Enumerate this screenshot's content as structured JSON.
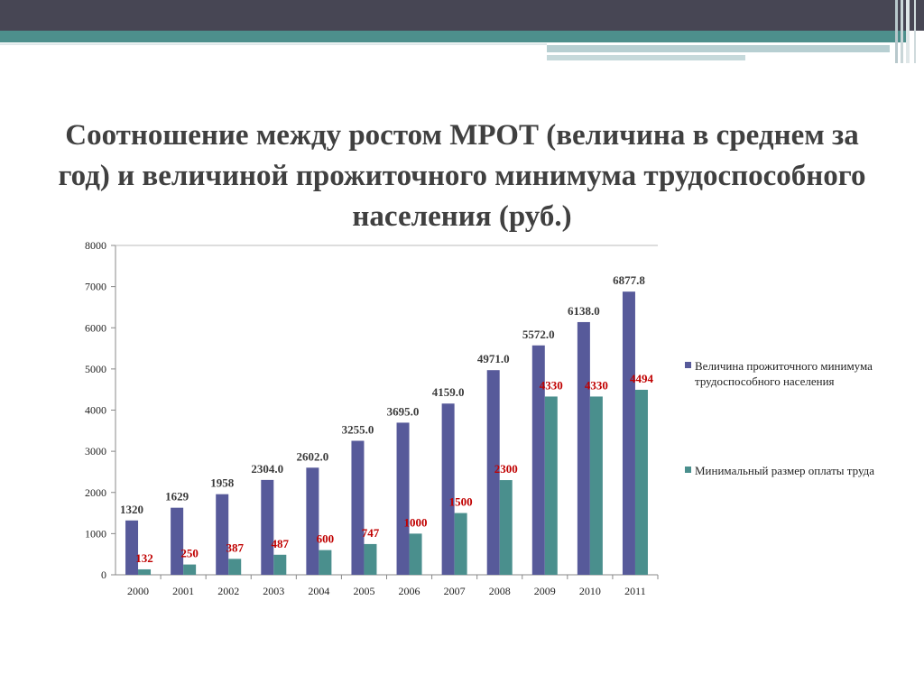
{
  "title": "Соотношение между ростом МРОТ (величина в среднем за год) и величиной прожиточного минимума трудоспособного населения (руб.)",
  "colors": {
    "series1": "#575a9a",
    "series2": "#4a8f8d",
    "label1": "#3a3a3a",
    "label2": "#c00000",
    "header_dark": "#474654",
    "header_teal": "#4d8f8c"
  },
  "chart_data": {
    "type": "bar",
    "categories": [
      "2000",
      "2001",
      "2002",
      "2003",
      "2004",
      "2005",
      "2006",
      "2007",
      "2008",
      "2009",
      "2010",
      "2011"
    ],
    "series": [
      {
        "name": "Величина прожиточного минимума трудоспособного населения",
        "values": [
          1320,
          1629,
          1958,
          2304.0,
          2602.0,
          3255.0,
          3695.0,
          4159.0,
          4971.0,
          5572.0,
          6138.0,
          6877.8
        ],
        "labels": [
          "1320",
          "1629",
          "1958",
          "2304.0",
          "2602.0",
          "3255.0",
          "3695.0",
          "4159.0",
          "4971.0",
          "5572.0",
          "6138.0",
          "6877.8"
        ]
      },
      {
        "name": "Минимальный размер оплаты труда",
        "values": [
          132,
          250,
          387,
          487,
          600,
          747,
          1000,
          1500,
          2300,
          4330,
          4330,
          4494
        ],
        "labels": [
          "132",
          "250",
          "387",
          "487",
          "600",
          "747",
          "1000",
          "1500",
          "2300",
          "4330",
          "4330",
          "4494"
        ]
      }
    ],
    "ylim": [
      0,
      8000
    ],
    "yticks": [
      "0",
      "1000",
      "2000",
      "3000",
      "4000",
      "5000",
      "6000",
      "7000",
      "8000"
    ],
    "legend_position": "right"
  }
}
